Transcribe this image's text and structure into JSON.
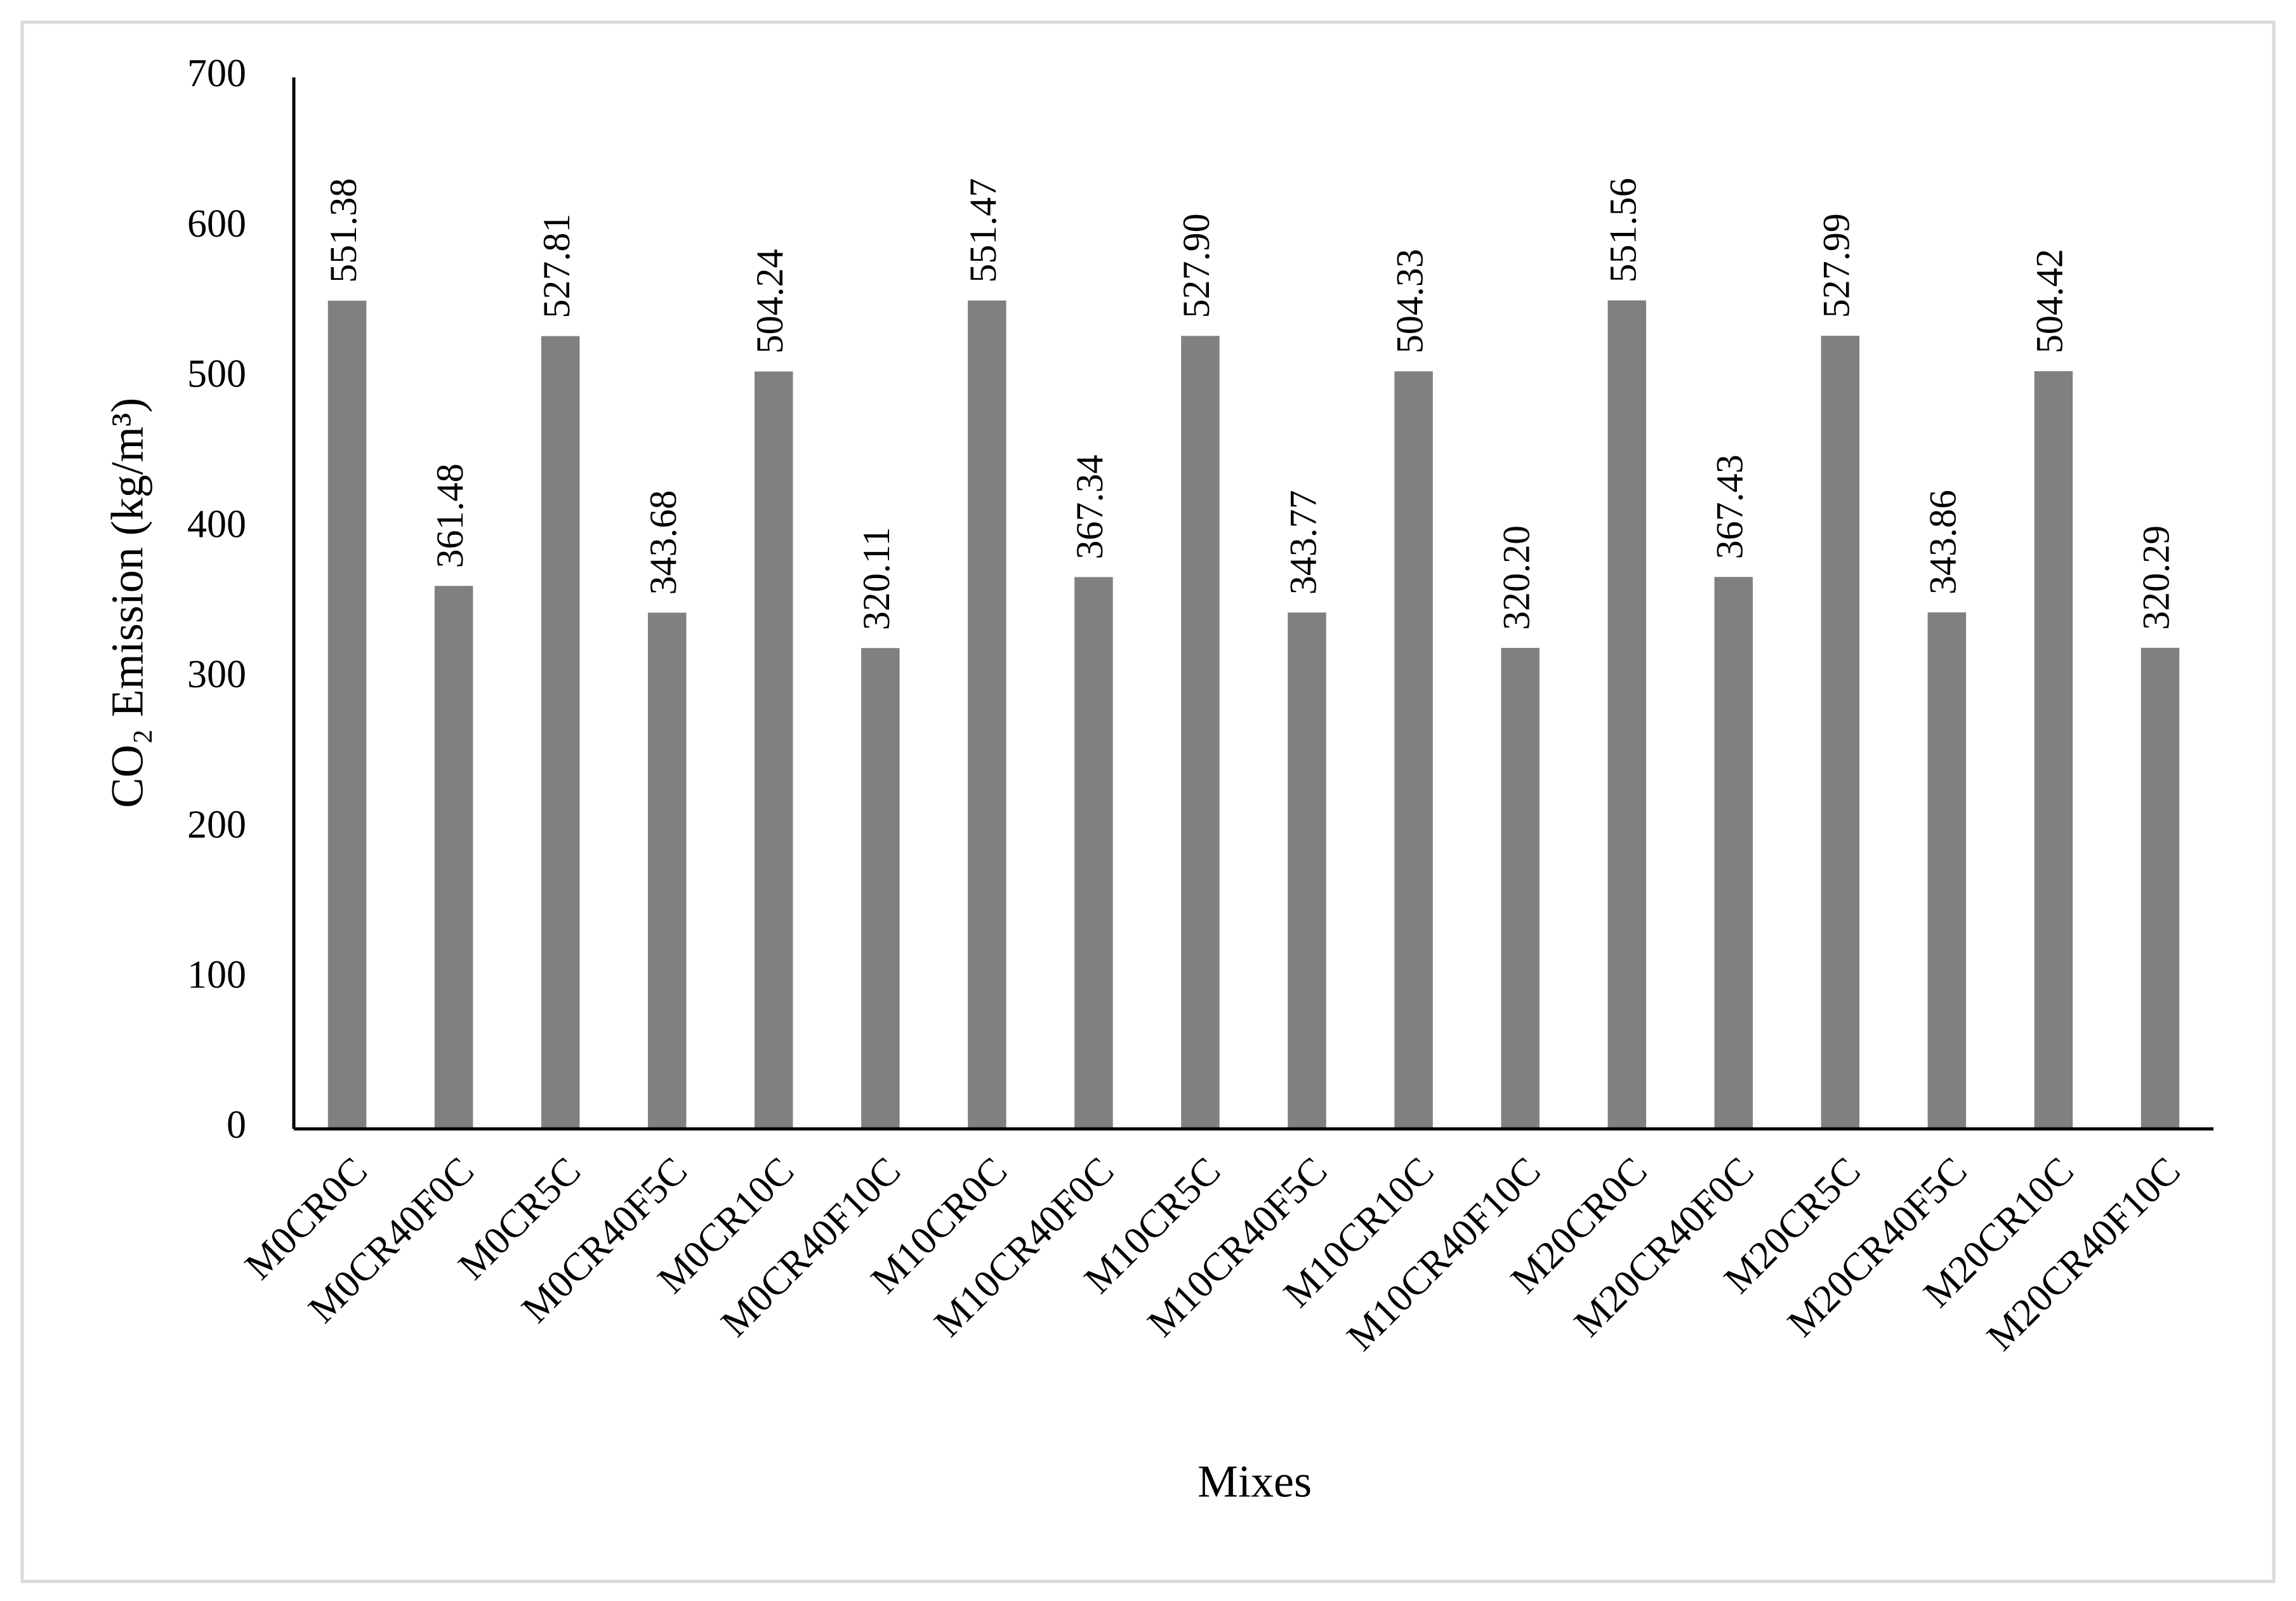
{
  "chart_data": {
    "type": "bar",
    "x_label": "Mixes",
    "y_label": "CO₂ Emission (kg/m³)",
    "categories": [
      "M0CR0C",
      "M0CR40F0C",
      "M0CR5C",
      "M0CR40F5C",
      "M0CR10C",
      "M0CR40F10C",
      "M10CR0C",
      "M10CR40F0C",
      "M10CR5C",
      "M10CR40F5C",
      "M10CR10C",
      "M10CR40F10C",
      "M20CR0C",
      "M20CR40F0C",
      "M20CR5C",
      "M20CR40F5C",
      "M20CR10C",
      "M20CR40F10C"
    ],
    "values": [
      551.38,
      361.48,
      527.81,
      343.68,
      504.24,
      320.11,
      551.47,
      367.34,
      527.9,
      343.77,
      504.33,
      320.2,
      551.56,
      367.43,
      527.99,
      343.86,
      504.42,
      320.29
    ],
    "value_labels": [
      "551.38",
      "361.48",
      "527.81",
      "343.68",
      "504.24",
      "320.11",
      "551.47",
      "367.34",
      "527.90",
      "343.77",
      "504.33",
      "320.20",
      "551.56",
      "367.43",
      "527.99",
      "343.86",
      "504.42",
      "320.29"
    ],
    "color": "#808080",
    "ylim": [
      0,
      700
    ],
    "yticks": [
      0,
      100,
      200,
      300,
      400,
      500,
      600,
      700
    ],
    "grid": false
  }
}
